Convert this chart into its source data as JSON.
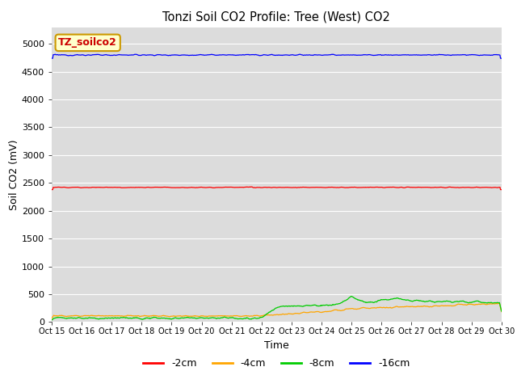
{
  "title": "Tonzi Soil CO2 Profile: Tree (West) CO2",
  "ylabel": "Soil CO2 (mV)",
  "xlabel": "Time",
  "legend_label": "TZ_soilco2",
  "bg_color": "#dcdcdc",
  "fig_bg": "#ffffff",
  "ylim": [
    0,
    5300
  ],
  "yticks": [
    0,
    500,
    1000,
    1500,
    2000,
    2500,
    3000,
    3500,
    4000,
    4500,
    5000
  ],
  "xtick_labels": [
    "Oct 15",
    "Oct 16",
    "Oct 17",
    "Oct 18",
    "Oct 19",
    "Oct 20",
    "Oct 21",
    "Oct 22",
    "Oct 23",
    "Oct 24",
    "Oct 25",
    "Oct 26",
    "Oct 27",
    "Oct 28",
    "Oct 29",
    "Oct 30"
  ],
  "series": {
    "neg2cm": {
      "color": "#ff0000",
      "label": "-2cm"
    },
    "neg4cm": {
      "color": "#ffa500",
      "label": "-4cm"
    },
    "neg8cm": {
      "color": "#00cc00",
      "label": "-8cm"
    },
    "neg16cm": {
      "color": "#0000ff",
      "label": "-16cm"
    }
  },
  "annotation_bg": "#ffffcc",
  "annotation_edge": "#cc9900",
  "annotation_text_color": "#cc0000"
}
